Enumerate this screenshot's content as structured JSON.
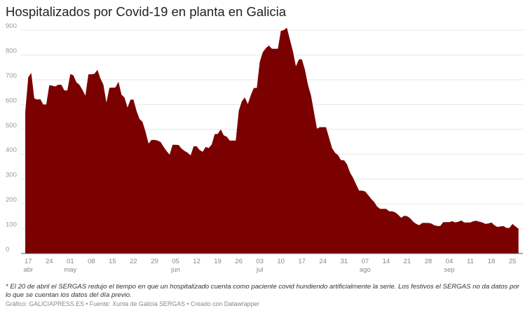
{
  "chart_data": {
    "type": "area",
    "title": "Hospitalizados por Covid-19 en planta en Galicia",
    "color": "#7b0000",
    "ylim": [
      0,
      900
    ],
    "yticks": [
      0,
      100,
      200,
      300,
      400,
      500,
      600,
      700,
      800,
      900
    ],
    "grid": true,
    "x_ticks": [
      {
        "date": "04-17",
        "label": "17",
        "month": "abr"
      },
      {
        "date": "04-24",
        "label": "24",
        "month": ""
      },
      {
        "date": "05-01",
        "label": "01",
        "month": "may"
      },
      {
        "date": "05-08",
        "label": "08",
        "month": ""
      },
      {
        "date": "05-15",
        "label": "15",
        "month": ""
      },
      {
        "date": "05-22",
        "label": "22",
        "month": ""
      },
      {
        "date": "05-29",
        "label": "29",
        "month": ""
      },
      {
        "date": "06-05",
        "label": "05",
        "month": "jun"
      },
      {
        "date": "06-12",
        "label": "12",
        "month": ""
      },
      {
        "date": "06-19",
        "label": "19",
        "month": ""
      },
      {
        "date": "06-26",
        "label": "26",
        "month": ""
      },
      {
        "date": "07-03",
        "label": "03",
        "month": "jul"
      },
      {
        "date": "07-10",
        "label": "10",
        "month": ""
      },
      {
        "date": "07-17",
        "label": "17",
        "month": ""
      },
      {
        "date": "07-24",
        "label": "24",
        "month": ""
      },
      {
        "date": "07-31",
        "label": "31",
        "month": ""
      },
      {
        "date": "08-07",
        "label": "07",
        "month": "ago"
      },
      {
        "date": "08-14",
        "label": "14",
        "month": ""
      },
      {
        "date": "08-21",
        "label": "21",
        "month": ""
      },
      {
        "date": "08-28",
        "label": "28",
        "month": ""
      },
      {
        "date": "09-04",
        "label": "04",
        "month": "sep"
      },
      {
        "date": "09-11",
        "label": "11",
        "month": ""
      },
      {
        "date": "09-18",
        "label": "18",
        "month": ""
      },
      {
        "date": "09-25",
        "label": "25",
        "month": ""
      }
    ],
    "x": [
      "04-16",
      "04-17",
      "04-18",
      "04-19",
      "04-20",
      "04-21",
      "04-22",
      "04-23",
      "04-24",
      "04-25",
      "04-26",
      "04-27",
      "04-28",
      "04-29",
      "04-30",
      "05-01",
      "05-02",
      "05-03",
      "05-04",
      "05-05",
      "05-06",
      "05-07",
      "05-08",
      "05-09",
      "05-10",
      "05-11",
      "05-12",
      "05-13",
      "05-14",
      "05-15",
      "05-16",
      "05-17",
      "05-18",
      "05-19",
      "05-20",
      "05-21",
      "05-22",
      "05-23",
      "05-24",
      "05-25",
      "05-26",
      "05-27",
      "05-28",
      "05-29",
      "05-30",
      "05-31",
      "06-01",
      "06-02",
      "06-03",
      "06-04",
      "06-05",
      "06-06",
      "06-07",
      "06-08",
      "06-09",
      "06-10",
      "06-11",
      "06-12",
      "06-13",
      "06-14",
      "06-15",
      "06-16",
      "06-17",
      "06-18",
      "06-19",
      "06-20",
      "06-21",
      "06-22",
      "06-23",
      "06-24",
      "06-25",
      "06-26",
      "06-27",
      "06-28",
      "06-29",
      "06-30",
      "07-01",
      "07-02",
      "07-03",
      "07-04",
      "07-05",
      "07-06",
      "07-07",
      "07-08",
      "07-09",
      "07-10",
      "07-11",
      "07-12",
      "07-13",
      "07-14",
      "07-15",
      "07-16",
      "07-17",
      "07-18",
      "07-19",
      "07-20",
      "07-21",
      "07-22",
      "07-23",
      "07-24",
      "07-25",
      "07-26",
      "07-27",
      "07-28",
      "07-29",
      "07-30",
      "07-31",
      "08-01",
      "08-02",
      "08-03",
      "08-04",
      "08-05",
      "08-06",
      "08-07",
      "08-08",
      "08-09",
      "08-10",
      "08-11",
      "08-12",
      "08-13",
      "08-14",
      "08-15",
      "08-16",
      "08-17",
      "08-18",
      "08-19",
      "08-20",
      "08-21",
      "08-22",
      "08-23",
      "08-24",
      "08-25",
      "08-26",
      "08-27",
      "08-28",
      "08-29",
      "08-30",
      "08-31",
      "09-01",
      "09-02",
      "09-03",
      "09-04",
      "09-05",
      "09-06",
      "09-07",
      "09-08",
      "09-09",
      "09-10",
      "09-11",
      "09-12",
      "09-13",
      "09-14",
      "09-15",
      "09-16",
      "09-17",
      "09-18",
      "09-19",
      "09-20",
      "09-21",
      "09-22",
      "09-23",
      "09-24",
      "09-25",
      "09-26",
      "09-27"
    ],
    "values": [
      570,
      710,
      727,
      625,
      620,
      622,
      600,
      600,
      678,
      676,
      673,
      680,
      680,
      657,
      657,
      723,
      718,
      690,
      680,
      660,
      636,
      722,
      722,
      724,
      740,
      705,
      680,
      608,
      668,
      668,
      669,
      692,
      640,
      628,
      588,
      620,
      620,
      575,
      542,
      530,
      490,
      443,
      458,
      458,
      455,
      449,
      430,
      413,
      398,
      438,
      438,
      437,
      422,
      413,
      406,
      395,
      432,
      432,
      417,
      410,
      429,
      425,
      439,
      481,
      482,
      500,
      476,
      471,
      455,
      455,
      455,
      575,
      613,
      629,
      602,
      638,
      667,
      667,
      773,
      811,
      827,
      838,
      825,
      825,
      825,
      897,
      900,
      910,
      862,
      815,
      754,
      782,
      782,
      740,
      679,
      637,
      571,
      503,
      509,
      509,
      509,
      467,
      425,
      406,
      396,
      376,
      376,
      359,
      326,
      305,
      279,
      253,
      253,
      250,
      236,
      220,
      208,
      189,
      180,
      180,
      180,
      170,
      170,
      166,
      156,
      144,
      152,
      150,
      142,
      128,
      119,
      114,
      123,
      123,
      123,
      121,
      114,
      111,
      111,
      126,
      126,
      126,
      130,
      125,
      128,
      133,
      125,
      125,
      125,
      130,
      132,
      128,
      125,
      119,
      121,
      125,
      114,
      107,
      109,
      111,
      103,
      103,
      119,
      109,
      100
    ]
  },
  "footer": {
    "note": "* El 20 de abril el SERGAS redujo el tiempo en que un hospitalizado cuenta como paciente covid hundiendo artificialmente la serie. Los festivos el SERGAS no da datos por lo que se cuentan los datos del día previo.",
    "credit": "Gráfico: GALICIAPRESS.ES • Fuente: Xunta de Galicia SERGAS • Creado con Datawrapper"
  }
}
